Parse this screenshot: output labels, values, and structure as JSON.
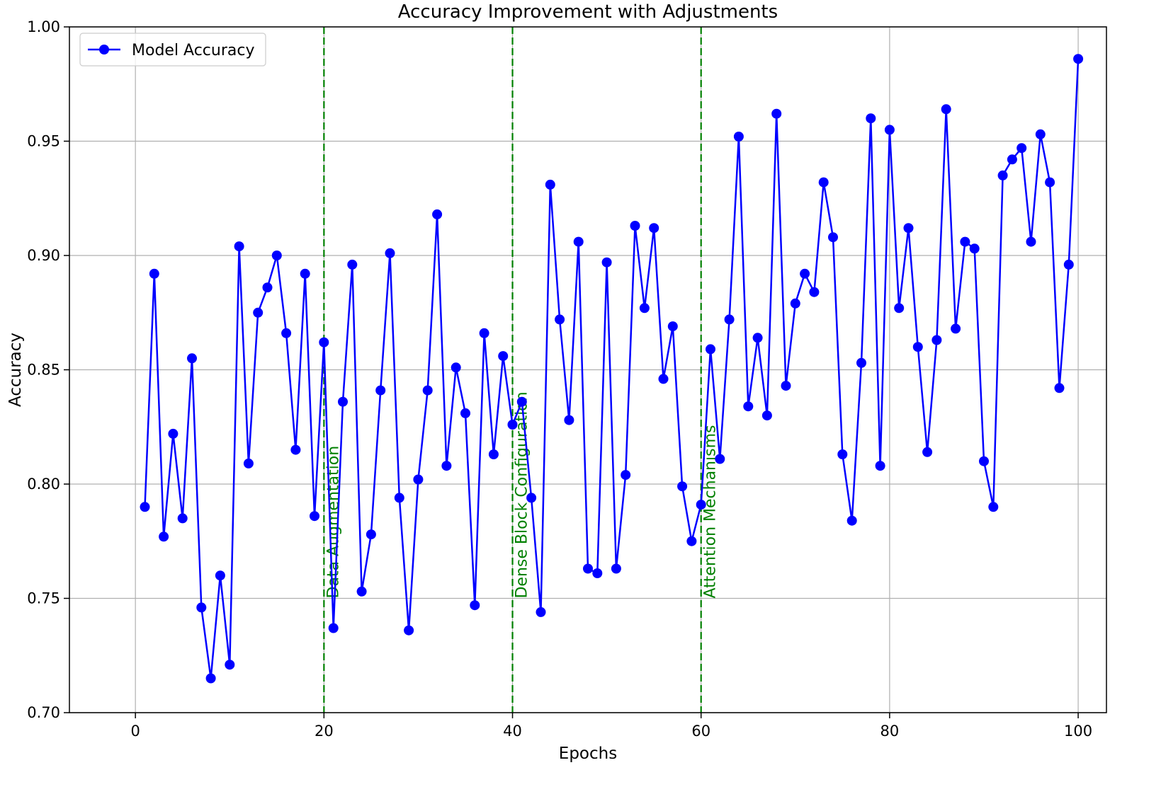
{
  "chart_data": {
    "type": "line",
    "title": "Accuracy Improvement with Adjustments",
    "xlabel": "Epochs",
    "ylabel": "Accuracy",
    "xlim": [
      -7,
      103
    ],
    "ylim": [
      0.7,
      1.0
    ],
    "xticks": [
      0,
      20,
      40,
      60,
      80,
      100
    ],
    "xtick_labels": [
      "0",
      "20",
      "40",
      "60",
      "80",
      "100"
    ],
    "yticks": [
      0.7,
      0.75,
      0.8,
      0.85,
      0.9,
      0.95,
      1.0
    ],
    "ytick_labels": [
      "0.70",
      "0.75",
      "0.80",
      "0.85",
      "0.90",
      "0.95",
      "1.00"
    ],
    "grid": true,
    "legend_position": "top-left",
    "series": [
      {
        "name": "Model Accuracy",
        "color": "#0000ff",
        "marker": "circle",
        "x": [
          1,
          2,
          3,
          4,
          5,
          6,
          7,
          8,
          9,
          10,
          11,
          12,
          13,
          14,
          15,
          16,
          17,
          18,
          19,
          20,
          21,
          22,
          23,
          24,
          25,
          26,
          27,
          28,
          29,
          30,
          31,
          32,
          33,
          34,
          35,
          36,
          37,
          38,
          39,
          40,
          41,
          42,
          43,
          44,
          45,
          46,
          47,
          48,
          49,
          50,
          51,
          52,
          53,
          54,
          55,
          56,
          57,
          58,
          59,
          60,
          61,
          62,
          63,
          64,
          65,
          66,
          67,
          68,
          69,
          70,
          71,
          72,
          73,
          74,
          75,
          76,
          77,
          78,
          79,
          80,
          81,
          82,
          83,
          84,
          85,
          86,
          87,
          88,
          89,
          90,
          91,
          92,
          93,
          94,
          95,
          96,
          97,
          98,
          99,
          100
        ],
        "values": [
          0.79,
          0.892,
          0.777,
          0.822,
          0.785,
          0.855,
          0.746,
          0.715,
          0.76,
          0.721,
          0.904,
          0.809,
          0.875,
          0.886,
          0.9,
          0.866,
          0.815,
          0.892,
          0.786,
          0.862,
          0.737,
          0.836,
          0.896,
          0.753,
          0.778,
          0.841,
          0.901,
          0.794,
          0.736,
          0.802,
          0.841,
          0.918,
          0.808,
          0.851,
          0.831,
          0.747,
          0.866,
          0.813,
          0.856,
          0.826,
          0.836,
          0.794,
          0.744,
          0.931,
          0.872,
          0.828,
          0.906,
          0.763,
          0.761,
          0.897,
          0.763,
          0.804,
          0.913,
          0.877,
          0.912,
          0.846,
          0.869,
          0.799,
          0.775,
          0.791,
          0.859,
          0.811,
          0.872,
          0.952,
          0.834,
          0.864,
          0.83,
          0.962,
          0.843,
          0.879,
          0.892,
          0.884,
          0.932,
          0.908,
          0.813,
          0.784,
          0.853,
          0.96,
          0.808,
          0.955,
          0.877,
          0.912,
          0.86,
          0.814,
          0.863,
          0.964,
          0.868,
          0.906,
          0.903,
          0.81,
          0.79,
          0.935,
          0.942,
          0.947,
          0.906,
          0.953,
          0.932,
          0.842,
          0.896,
          0.986
        ]
      }
    ],
    "annotations": [
      {
        "x": 20,
        "label": "Data Augmentation",
        "color": "#008000"
      },
      {
        "x": 40,
        "label": "Dense Block Configuration",
        "color": "#008000"
      },
      {
        "x": 60,
        "label": "Attention Mechanisms",
        "color": "#008000"
      }
    ]
  }
}
